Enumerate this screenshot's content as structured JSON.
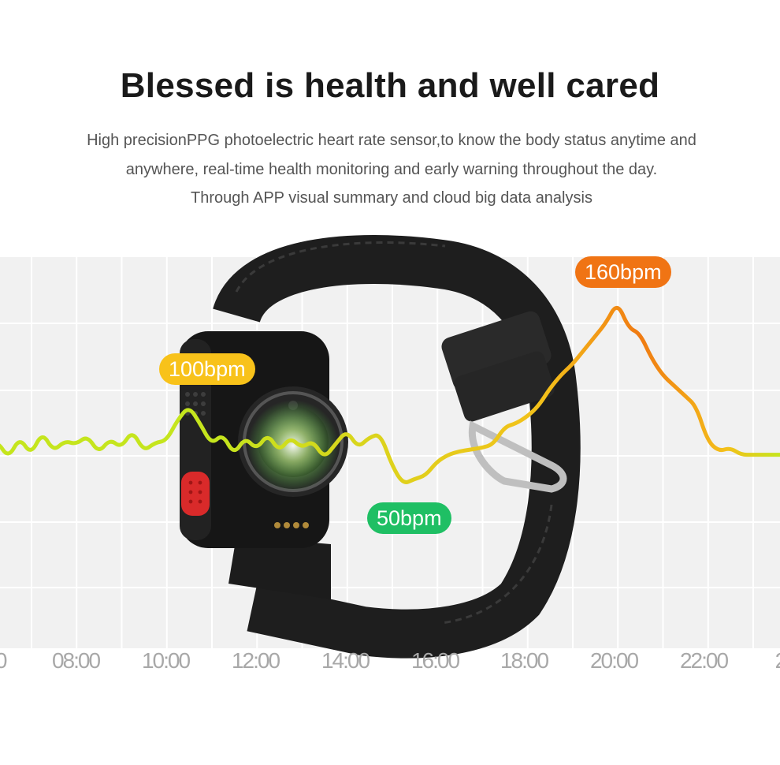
{
  "heading": "Blessed is health and well cared",
  "description": [
    "High precisionPPG photoelectric heart rate sensor,to know the body status anytime and",
    "anywhere, real-time health monitoring and early warning throughout the day.",
    "Through APP visual summary and cloud big data analysis"
  ],
  "chart_data": {
    "type": "line",
    "title": "",
    "xlabel": "",
    "ylabel": "",
    "x_tick_labels": [
      "0",
      "08:00",
      "10:00",
      "12:00",
      "14:00",
      "16:00",
      "18:00",
      "20:00",
      "22:00",
      "2"
    ],
    "grid": true,
    "annotations": [
      {
        "label": "100bpm",
        "color": "#f8c21a"
      },
      {
        "label": "50bpm",
        "color": "#1fbf64"
      },
      {
        "label": "160bpm",
        "color": "#f07414"
      }
    ],
    "series": [
      {
        "line_colors": [
          "#c5e51d",
          "#f4c01a",
          "#f07a12"
        ],
        "values": [
          {
            "t": "06:00",
            "bpm": 75
          },
          {
            "t": "06:15",
            "bpm": 80
          },
          {
            "t": "06:30",
            "bpm": 70
          },
          {
            "t": "06:45",
            "bpm": 82
          },
          {
            "t": "07:00",
            "bpm": 72
          },
          {
            "t": "07:15",
            "bpm": 85
          },
          {
            "t": "07:30",
            "bpm": 74
          },
          {
            "t": "07:45",
            "bpm": 80
          },
          {
            "t": "08:00",
            "bpm": 78
          },
          {
            "t": "08:15",
            "bpm": 83
          },
          {
            "t": "08:30",
            "bpm": 73
          },
          {
            "t": "08:45",
            "bpm": 81
          },
          {
            "t": "09:00",
            "bpm": 76
          },
          {
            "t": "09:15",
            "bpm": 86
          },
          {
            "t": "09:30",
            "bpm": 74
          },
          {
            "t": "09:45",
            "bpm": 79
          },
          {
            "t": "10:00",
            "bpm": 80
          },
          {
            "t": "10:15",
            "bpm": 92
          },
          {
            "t": "10:30",
            "bpm": 100
          },
          {
            "t": "10:45",
            "bpm": 90
          },
          {
            "t": "11:00",
            "bpm": 78
          },
          {
            "t": "11:15",
            "bpm": 84
          },
          {
            "t": "11:30",
            "bpm": 72
          },
          {
            "t": "11:45",
            "bpm": 82
          },
          {
            "t": "12:00",
            "bpm": 75
          },
          {
            "t": "12:15",
            "bpm": 84
          },
          {
            "t": "12:30",
            "bpm": 74
          },
          {
            "t": "12:45",
            "bpm": 82
          },
          {
            "t": "13:00",
            "bpm": 76
          },
          {
            "t": "13:15",
            "bpm": 80
          },
          {
            "t": "13:30",
            "bpm": 70
          },
          {
            "t": "13:45",
            "bpm": 78
          },
          {
            "t": "14:00",
            "bpm": 86
          },
          {
            "t": "14:15",
            "bpm": 76
          },
          {
            "t": "14:30",
            "bpm": 82
          },
          {
            "t": "14:45",
            "bpm": 84
          },
          {
            "t": "15:00",
            "bpm": 66
          },
          {
            "t": "15:15",
            "bpm": 55
          },
          {
            "t": "15:30",
            "bpm": 58
          },
          {
            "t": "15:45",
            "bpm": 60
          },
          {
            "t": "16:00",
            "bpm": 68
          },
          {
            "t": "16:15",
            "bpm": 72
          },
          {
            "t": "16:30",
            "bpm": 74
          },
          {
            "t": "16:45",
            "bpm": 75
          },
          {
            "t": "17:00",
            "bpm": 76
          },
          {
            "t": "17:15",
            "bpm": 78
          },
          {
            "t": "17:30",
            "bpm": 88
          },
          {
            "t": "17:45",
            "bpm": 90
          },
          {
            "t": "18:00",
            "bpm": 94
          },
          {
            "t": "18:15",
            "bpm": 100
          },
          {
            "t": "18:30",
            "bpm": 110
          },
          {
            "t": "18:45",
            "bpm": 118
          },
          {
            "t": "19:00",
            "bpm": 124
          },
          {
            "t": "19:15",
            "bpm": 132
          },
          {
            "t": "19:30",
            "bpm": 140
          },
          {
            "t": "19:45",
            "bpm": 148
          },
          {
            "t": "20:00",
            "bpm": 160
          },
          {
            "t": "20:15",
            "bpm": 145
          },
          {
            "t": "20:30",
            "bpm": 142
          },
          {
            "t": "20:45",
            "bpm": 128
          },
          {
            "t": "21:00",
            "bpm": 118
          },
          {
            "t": "21:15",
            "bpm": 112
          },
          {
            "t": "21:30",
            "bpm": 106
          },
          {
            "t": "21:45",
            "bpm": 100
          },
          {
            "t": "22:00",
            "bpm": 80
          },
          {
            "t": "22:15",
            "bpm": 74
          },
          {
            "t": "22:30",
            "bpm": 76
          },
          {
            "t": "22:45",
            "bpm": 72
          },
          {
            "t": "23:00",
            "bpm": 72
          }
        ]
      }
    ]
  }
}
